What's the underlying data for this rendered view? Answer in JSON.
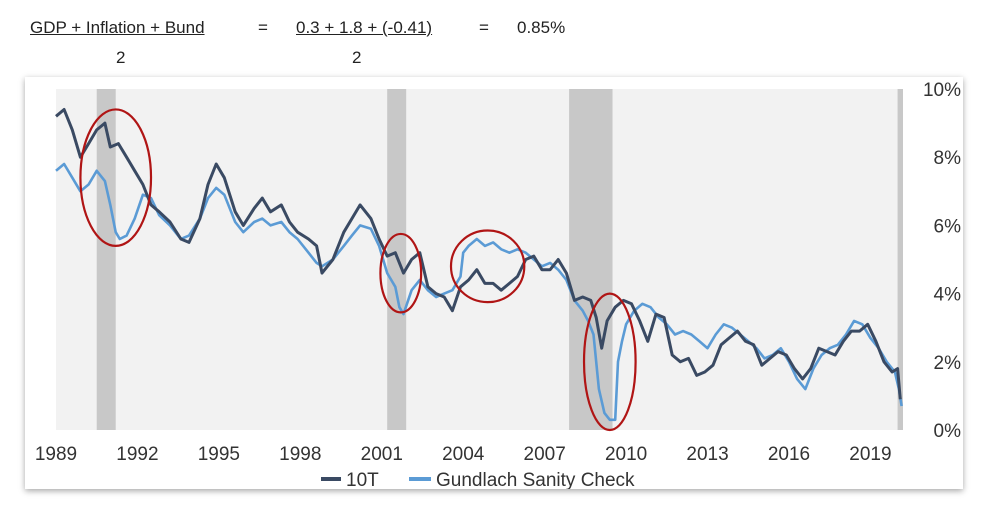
{
  "formula": {
    "lhs_num": "GDP + Inflation + Bund",
    "lhs_den": "2",
    "eq1": "=",
    "rhs_num": "0.3 + 1.8 + (-0.41)",
    "rhs_den": "2",
    "eq2": "=",
    "result": "0.85%"
  },
  "colors": {
    "series_10t": "#3a4a63",
    "series_gundlach": "#5b9bd5",
    "plot_bg": "#f2f2f2",
    "recession": "#c8c8c8",
    "annotation": "#b01515"
  },
  "chart_data": {
    "type": "line",
    "title": "",
    "xlabel": "",
    "ylabel": "",
    "xlim": [
      1989.0,
      2020.2
    ],
    "ylim": [
      0,
      10
    ],
    "grid": false,
    "legend_position": "bottom",
    "x_ticks": [
      {
        "value": 1989,
        "label": "1989"
      },
      {
        "value": 1992,
        "label": "1992"
      },
      {
        "value": 1995,
        "label": "1995"
      },
      {
        "value": 1998,
        "label": "1998"
      },
      {
        "value": 2001,
        "label": "2001"
      },
      {
        "value": 2004,
        "label": "2004"
      },
      {
        "value": 2007,
        "label": "2007"
      },
      {
        "value": 2010,
        "label": "2010"
      },
      {
        "value": 2013,
        "label": "2013"
      },
      {
        "value": 2016,
        "label": "2016"
      },
      {
        "value": 2019,
        "label": "2019"
      }
    ],
    "y_ticks": [
      {
        "value": 10,
        "label": "10%"
      },
      {
        "value": 8,
        "label": "8%"
      },
      {
        "value": 6,
        "label": "6%"
      },
      {
        "value": 4,
        "label": "4%"
      },
      {
        "value": 2,
        "label": "2%"
      },
      {
        "value": 0,
        "label": "0%"
      }
    ],
    "recessions": [
      {
        "start": 1990.5,
        "end": 1991.2
      },
      {
        "start": 2001.2,
        "end": 2001.9
      },
      {
        "start": 2007.9,
        "end": 2009.5
      },
      {
        "start": 2020.0,
        "end": 2020.2
      }
    ],
    "annotations": [
      {
        "cx": 1991.2,
        "cy": 7.4,
        "rx": 1.3,
        "ry": 2.0
      },
      {
        "cx": 2001.7,
        "cy": 4.6,
        "rx": 0.75,
        "ry": 1.15
      },
      {
        "cx": 2004.9,
        "cy": 4.8,
        "rx": 1.35,
        "ry": 1.05
      },
      {
        "cx": 2009.4,
        "cy": 2.0,
        "rx": 0.95,
        "ry": 2.0
      }
    ],
    "series": [
      {
        "name": "10T",
        "x": [
          1989.0,
          1989.3,
          1989.6,
          1989.9,
          1990.2,
          1990.5,
          1990.8,
          1991.0,
          1991.3,
          1991.6,
          1991.9,
          1992.2,
          1992.5,
          1992.8,
          1993.2,
          1993.6,
          1993.9,
          1994.3,
          1994.6,
          1994.9,
          1995.2,
          1995.6,
          1995.9,
          1996.3,
          1996.6,
          1996.9,
          1997.3,
          1997.6,
          1997.9,
          1998.3,
          1998.6,
          1998.8,
          1999.2,
          1999.6,
          1999.9,
          2000.2,
          2000.6,
          2000.9,
          2001.2,
          2001.5,
          2001.8,
          2002.1,
          2002.4,
          2002.7,
          2003.0,
          2003.3,
          2003.6,
          2003.9,
          2004.2,
          2004.5,
          2004.8,
          2005.1,
          2005.4,
          2005.7,
          2006.0,
          2006.3,
          2006.6,
          2006.9,
          2007.2,
          2007.5,
          2007.8,
          2008.1,
          2008.4,
          2008.7,
          2008.9,
          2009.1,
          2009.3,
          2009.6,
          2009.9,
          2010.2,
          2010.5,
          2010.8,
          2011.1,
          2011.4,
          2011.7,
          2012.0,
          2012.3,
          2012.6,
          2012.9,
          2013.2,
          2013.5,
          2013.8,
          2014.1,
          2014.4,
          2014.7,
          2015.0,
          2015.3,
          2015.6,
          2015.9,
          2016.2,
          2016.5,
          2016.8,
          2017.1,
          2017.4,
          2017.7,
          2018.0,
          2018.3,
          2018.6,
          2018.9,
          2019.2,
          2019.5,
          2019.8,
          2020.0,
          2020.1
        ],
        "values": [
          9.2,
          9.4,
          8.8,
          8.0,
          8.4,
          8.8,
          9.0,
          8.3,
          8.4,
          8.0,
          7.6,
          7.2,
          6.6,
          6.4,
          6.1,
          5.6,
          5.5,
          6.2,
          7.2,
          7.8,
          7.4,
          6.4,
          6.0,
          6.5,
          6.8,
          6.4,
          6.6,
          6.1,
          5.8,
          5.6,
          5.4,
          4.6,
          5.0,
          5.8,
          6.2,
          6.6,
          6.2,
          5.6,
          5.1,
          5.2,
          4.6,
          5.0,
          5.2,
          4.2,
          4.0,
          3.9,
          3.5,
          4.2,
          4.4,
          4.7,
          4.3,
          4.3,
          4.1,
          4.3,
          4.5,
          5.0,
          5.1,
          4.7,
          4.7,
          5.0,
          4.6,
          3.8,
          3.9,
          3.8,
          3.3,
          2.4,
          3.2,
          3.6,
          3.8,
          3.7,
          3.2,
          2.6,
          3.4,
          3.3,
          2.2,
          2.0,
          2.1,
          1.6,
          1.7,
          1.9,
          2.5,
          2.7,
          2.9,
          2.6,
          2.5,
          1.9,
          2.1,
          2.3,
          2.2,
          1.8,
          1.5,
          1.8,
          2.4,
          2.3,
          2.2,
          2.6,
          2.9,
          2.9,
          3.1,
          2.6,
          2.0,
          1.7,
          1.8,
          0.9
        ]
      },
      {
        "name": "Gundlach Sanity Check",
        "x": [
          1989.0,
          1989.3,
          1989.6,
          1989.9,
          1990.2,
          1990.5,
          1990.8,
          1991.0,
          1991.2,
          1991.35,
          1991.6,
          1991.9,
          1992.2,
          1992.5,
          1992.8,
          1993.2,
          1993.6,
          1993.9,
          1994.3,
          1994.6,
          1994.9,
          1995.2,
          1995.6,
          1995.9,
          1996.3,
          1996.6,
          1996.9,
          1997.3,
          1997.6,
          1997.9,
          1998.3,
          1998.6,
          1998.8,
          1999.2,
          1999.6,
          1999.9,
          2000.2,
          2000.6,
          2000.9,
          2001.2,
          2001.5,
          2001.65,
          2001.8,
          2002.1,
          2002.4,
          2002.7,
          2003.0,
          2003.3,
          2003.6,
          2003.9,
          2004.0,
          2004.2,
          2004.5,
          2004.8,
          2005.1,
          2005.4,
          2005.7,
          2006.0,
          2006.3,
          2006.6,
          2006.9,
          2007.2,
          2007.5,
          2007.8,
          2008.1,
          2008.4,
          2008.6,
          2008.8,
          2009.0,
          2009.2,
          2009.4,
          2009.6,
          2009.7,
          2009.85,
          2010.0,
          2010.3,
          2010.6,
          2010.9,
          2011.2,
          2011.5,
          2011.8,
          2012.1,
          2012.4,
          2012.7,
          2013.0,
          2013.3,
          2013.6,
          2013.9,
          2014.2,
          2014.5,
          2014.8,
          2015.1,
          2015.4,
          2015.7,
          2016.0,
          2016.3,
          2016.6,
          2016.9,
          2017.2,
          2017.5,
          2017.8,
          2018.1,
          2018.4,
          2018.7,
          2019.0,
          2019.3,
          2019.6,
          2019.9,
          2020.05,
          2020.15
        ],
        "values": [
          7.6,
          7.8,
          7.4,
          7.0,
          7.2,
          7.6,
          7.3,
          6.6,
          5.8,
          5.6,
          5.7,
          6.2,
          6.9,
          6.8,
          6.3,
          6.0,
          5.6,
          5.7,
          6.2,
          6.8,
          7.1,
          6.9,
          6.1,
          5.8,
          6.1,
          6.2,
          6.0,
          6.1,
          5.8,
          5.6,
          5.2,
          4.9,
          4.8,
          5.0,
          5.4,
          5.7,
          6.0,
          5.9,
          5.4,
          4.6,
          4.2,
          3.6,
          3.4,
          4.1,
          4.4,
          4.1,
          3.9,
          4.0,
          4.1,
          4.5,
          5.2,
          5.4,
          5.6,
          5.4,
          5.5,
          5.3,
          5.2,
          5.3,
          5.2,
          5.0,
          4.8,
          4.9,
          4.7,
          4.4,
          3.8,
          3.5,
          3.2,
          2.8,
          1.2,
          0.5,
          0.3,
          0.3,
          2.0,
          2.6,
          3.1,
          3.5,
          3.7,
          3.6,
          3.3,
          3.1,
          2.8,
          2.9,
          2.8,
          2.6,
          2.4,
          2.8,
          3.1,
          3.0,
          2.8,
          2.6,
          2.4,
          2.1,
          2.2,
          2.4,
          2.0,
          1.5,
          1.2,
          1.8,
          2.2,
          2.4,
          2.5,
          2.8,
          3.2,
          3.1,
          2.7,
          2.4,
          2.0,
          1.7,
          1.2,
          0.7
        ]
      }
    ]
  }
}
